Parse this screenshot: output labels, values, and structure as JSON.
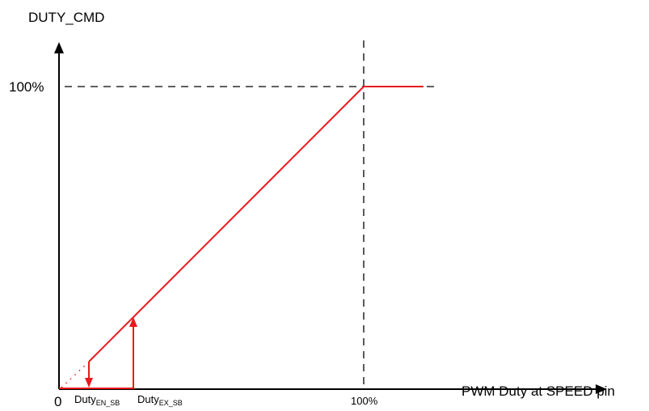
{
  "diagram": {
    "y_axis_label": "DUTY_CMD",
    "x_axis_label": "PWM Duty at SPEED pin",
    "y_tick_100": "100%",
    "x_tick_100": "100%",
    "origin_label": "0",
    "duty_en_sb": {
      "main": "Duty",
      "sub": "EN_SB"
    },
    "duty_ex_sb": {
      "main": "Duty",
      "sub": "EX_SB"
    }
  },
  "colors": {
    "curve": "#e8191c",
    "axis": "#000000",
    "guide": "#000000"
  }
}
